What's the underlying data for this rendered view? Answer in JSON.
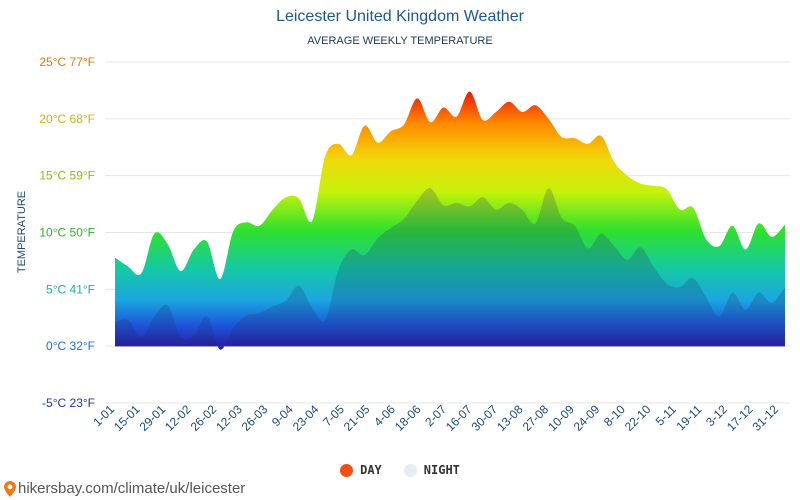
{
  "chart_data": {
    "type": "area",
    "title": "Leicester United Kingdom Weather",
    "subtitle": "AVERAGE WEEKLY TEMPERATURE",
    "ylabel": "TEMPERATURE",
    "ylim": [
      -5,
      25
    ],
    "yticks": [
      {
        "value": 25,
        "label": "25°C 77°F",
        "color": "#e8760e"
      },
      {
        "value": 20,
        "label": "20°C 68°F",
        "color": "#d4b20a"
      },
      {
        "value": 15,
        "label": "15°C 59°F",
        "color": "#9ab80a"
      },
      {
        "value": 10,
        "label": "10°C 50°F",
        "color": "#2bb52b"
      },
      {
        "value": 5,
        "label": "5°C 41°F",
        "color": "#16b3a0"
      },
      {
        "value": 0,
        "label": "0°C 32°F",
        "color": "#1e6fd8"
      },
      {
        "value": -5,
        "label": "-5°C 23°F",
        "color": "#2036a8"
      }
    ],
    "x_tick_labels": [
      "1-01",
      "15-01",
      "29-01",
      "12-02",
      "26-02",
      "12-03",
      "26-03",
      "9-04",
      "23-04",
      "7-05",
      "21-05",
      "4-06",
      "18-06",
      "2-07",
      "16-07",
      "30-07",
      "13-08",
      "27-08",
      "10-09",
      "24-09",
      "8-10",
      "22-10",
      "5-11",
      "19-11",
      "3-12",
      "17-12",
      "31-12"
    ],
    "series": [
      {
        "name": "DAY",
        "values": [
          7.8,
          7.0,
          6.4,
          9.9,
          9.0,
          6.6,
          8.5,
          9.2,
          5.9,
          10.1,
          10.9,
          10.6,
          12.0,
          13.1,
          13.0,
          11.0,
          16.7,
          17.8,
          16.8,
          19.4,
          17.9,
          18.9,
          19.5,
          21.8,
          19.7,
          21.0,
          20.2,
          22.4,
          19.9,
          20.6,
          21.5,
          20.6,
          21.2,
          20.0,
          18.4,
          18.3,
          17.8,
          18.5,
          16.2,
          15.0,
          14.3,
          14.1,
          13.8,
          12.0,
          12.2,
          9.4,
          8.8,
          10.6,
          8.5,
          10.8,
          9.6,
          10.7
        ]
      },
      {
        "name": "NIGHT",
        "values": [
          2.1,
          2.3,
          0.8,
          2.6,
          3.6,
          0.8,
          0.9,
          2.6,
          -0.3,
          1.6,
          2.7,
          2.9,
          3.5,
          4.0,
          5.3,
          3.4,
          2.3,
          6.7,
          8.5,
          8.0,
          9.5,
          10.4,
          11.2,
          12.8,
          13.9,
          12.4,
          12.6,
          12.3,
          13.1,
          12.0,
          12.6,
          12.0,
          10.8,
          13.9,
          11.3,
          10.6,
          8.6,
          9.9,
          8.8,
          7.6,
          8.7,
          7.0,
          5.5,
          5.2,
          6.0,
          4.3,
          2.6,
          4.7,
          3.2,
          4.7,
          3.8,
          5.2
        ]
      }
    ]
  },
  "legend": {
    "day": "DAY",
    "night": "NIGHT"
  },
  "colors": {
    "day_marker": "#f04e14",
    "night_marker": "#e6ecf2",
    "grid": "#e6e6e6",
    "axis_label": "#1a4a7a"
  },
  "footer": {
    "icon": "location-pin-icon",
    "text": "hikersbay.com/climate/uk/leicester"
  }
}
